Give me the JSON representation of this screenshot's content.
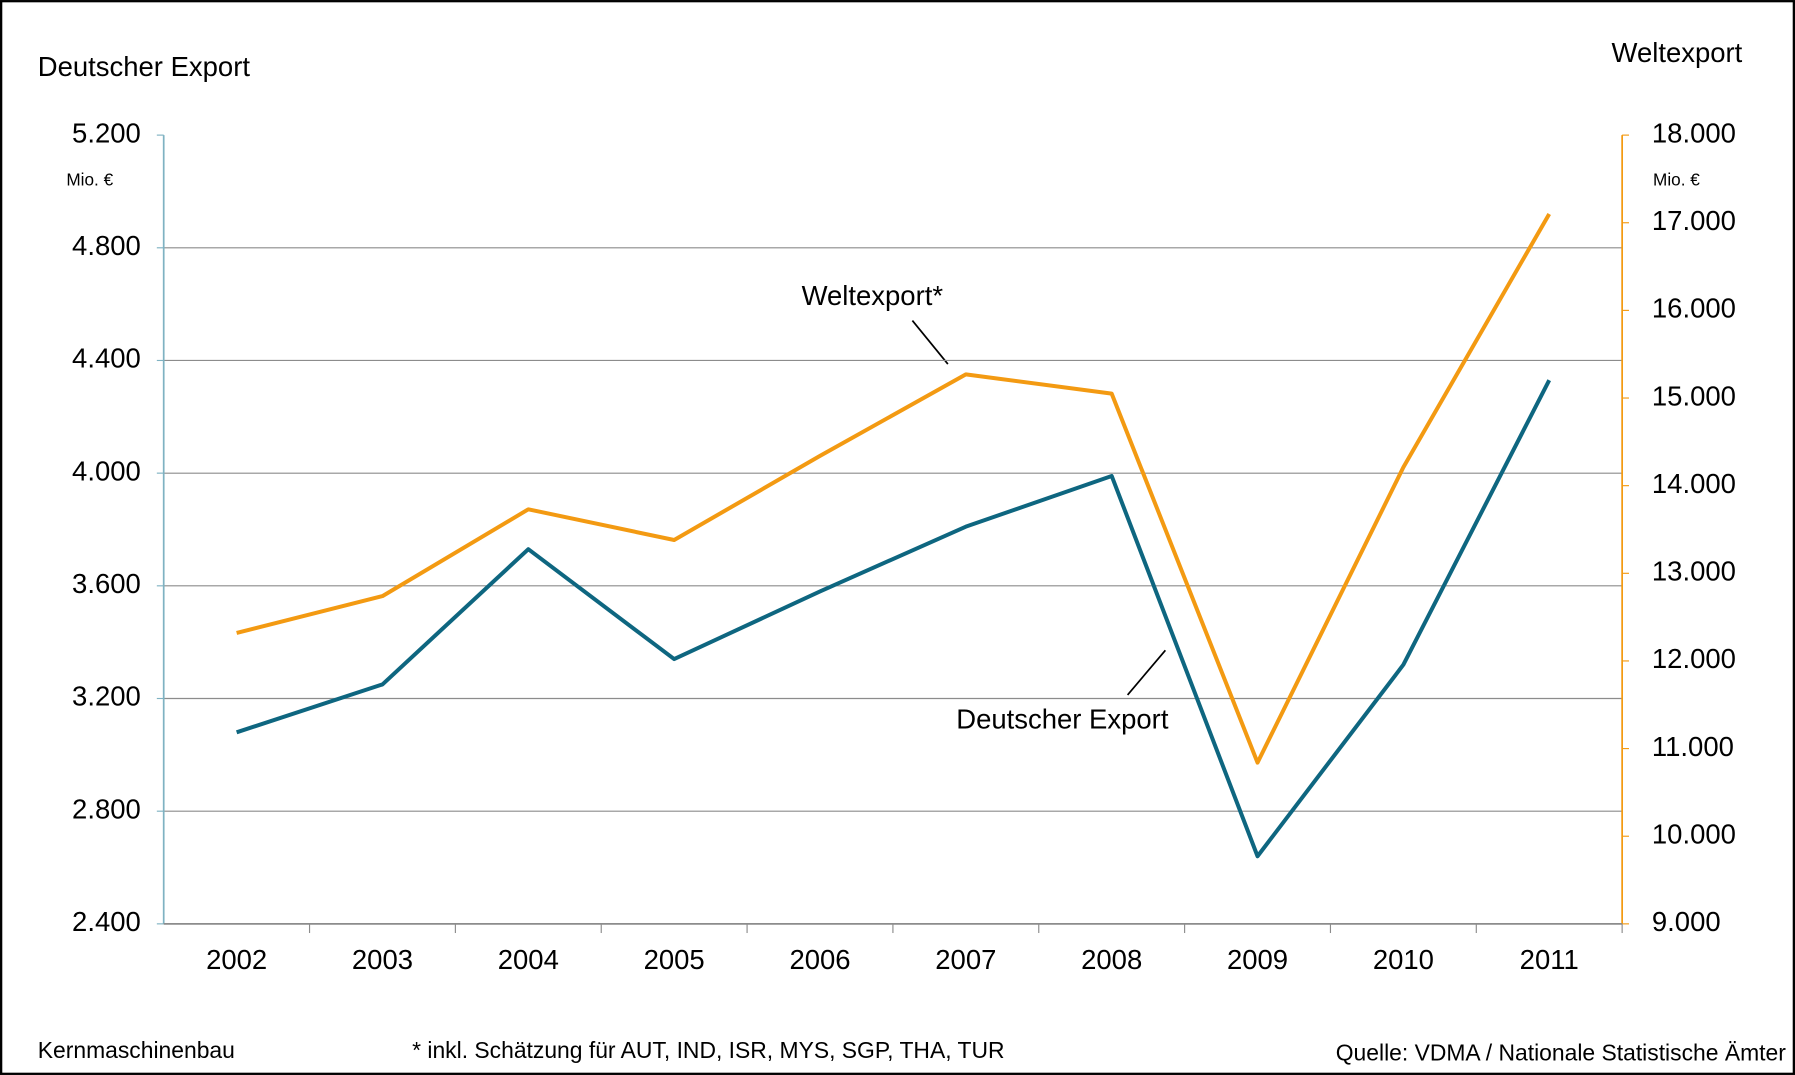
{
  "chart_data": {
    "type": "line",
    "y_axis_title": "Deutscher Export",
    "y2_axis_title": "Weltexport",
    "y_unit": "Mio. €",
    "y2_unit": "Mio. €",
    "categories": [
      "2002",
      "2003",
      "2004",
      "2005",
      "2006",
      "2007",
      "2008",
      "2009",
      "2010",
      "2011"
    ],
    "series": [
      {
        "name": "Deutscher Export",
        "color": "#0e6680",
        "values": [
          3080,
          3250,
          3730,
          3340,
          3580,
          3810,
          3990,
          2640,
          3320,
          4330
        ]
      },
      {
        "name": "Weltexport*",
        "color": "#f39a12",
        "axis": "y2",
        "values": [
          12320,
          12740,
          13730,
          13380,
          14340,
          15270,
          15050,
          10840,
          14210,
          17100
        ]
      }
    ],
    "ylim": [
      2400,
      5200
    ],
    "yticks": [
      {
        "value": 2400,
        "label": "2.400"
      },
      {
        "value": 2800,
        "label": "2.800"
      },
      {
        "value": 3200,
        "label": "3.200"
      },
      {
        "value": 3600,
        "label": "3.600"
      },
      {
        "value": 4000,
        "label": "4.000"
      },
      {
        "value": 4400,
        "label": "4.400"
      },
      {
        "value": 4800,
        "label": "4.800"
      },
      {
        "value": 5200,
        "label": "5.200"
      }
    ],
    "y2lim": [
      9000,
      18000
    ],
    "y2ticks": [
      {
        "value": 9000,
        "label": "9.000"
      },
      {
        "value": 10000,
        "label": "10.000"
      },
      {
        "value": 11000,
        "label": "11.000"
      },
      {
        "value": 12000,
        "label": "12.000"
      },
      {
        "value": 13000,
        "label": "13.000"
      },
      {
        "value": 14000,
        "label": "14.000"
      },
      {
        "value": 15000,
        "label": "15.000"
      },
      {
        "value": 16000,
        "label": "16.000"
      },
      {
        "value": 17000,
        "label": "17.000"
      },
      {
        "value": 18000,
        "label": "18.000"
      }
    ],
    "grid": true,
    "footer_left": "Kernmaschinenbau",
    "footnote": "* inkl. Schätzung für AUT, IND, ISR, MYS, SGP, THA, TUR",
    "source": "Quelle: VDMA / Nationale Statistische Ämter"
  }
}
